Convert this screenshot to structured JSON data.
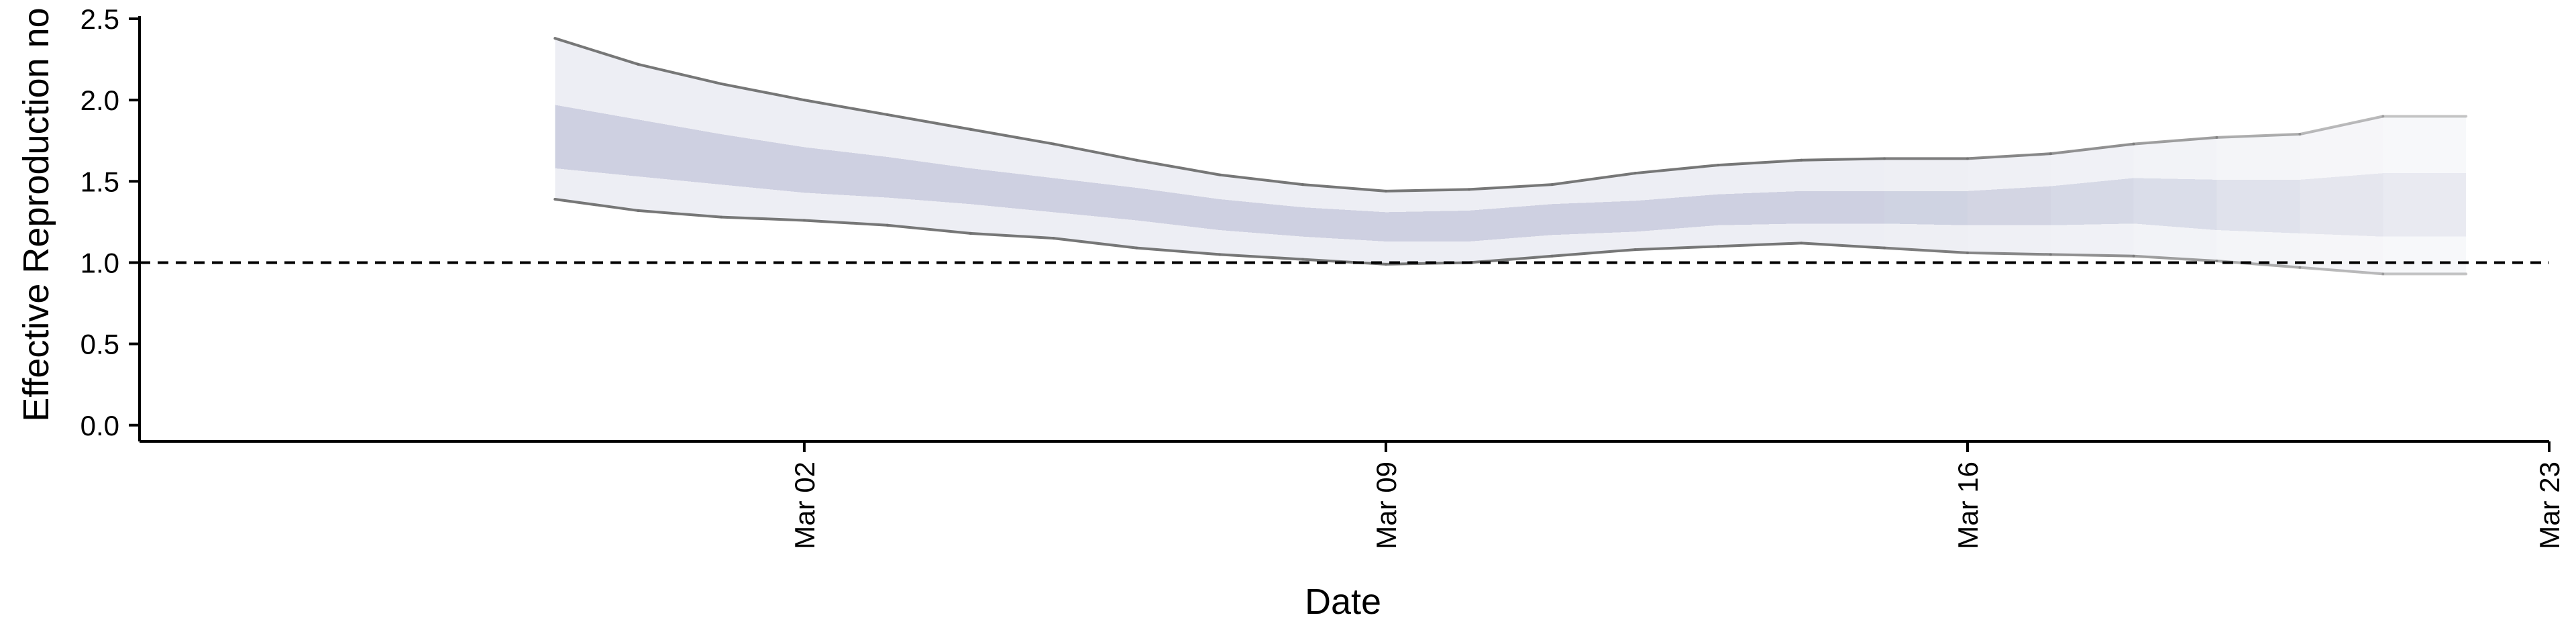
{
  "chart_data": {
    "type": "area",
    "title": "",
    "xlabel": "Date",
    "ylabel": "Effective Reproduction no",
    "x_axis": {
      "range": [
        "2020-02-23",
        "2020-03-23"
      ],
      "ticks": [
        "2020-03-02",
        "2020-03-09",
        "2020-03-16",
        "2020-03-23"
      ],
      "tick_labels": [
        "Mar 02",
        "Mar 09",
        "Mar 16",
        "Mar 23"
      ]
    },
    "y_axis": {
      "range": [
        -0.1,
        2.5
      ],
      "ticks": [
        0.0,
        0.5,
        1.0,
        1.5,
        2.0,
        2.5
      ],
      "tick_labels": [
        "0.0",
        "0.5",
        "1.0",
        "1.5",
        "2.0",
        "2.5"
      ]
    },
    "reference_line": {
      "y": 1.0,
      "style": "dashed"
    },
    "grid": false,
    "legend": "none",
    "colors": {
      "band": "#7c86b0",
      "bound_line": "#707070",
      "reference": "#000000"
    },
    "dates": [
      "2020-02-28",
      "2020-02-29",
      "2020-03-01",
      "2020-03-02",
      "2020-03-03",
      "2020-03-04",
      "2020-03-05",
      "2020-03-06",
      "2020-03-07",
      "2020-03-08",
      "2020-03-09",
      "2020-03-10",
      "2020-03-11",
      "2020-03-12",
      "2020-03-13",
      "2020-03-14",
      "2020-03-15",
      "2020-03-16",
      "2020-03-17",
      "2020-03-18",
      "2020-03-19",
      "2020-03-20",
      "2020-03-21",
      "2020-03-22"
    ],
    "outer_upper": [
      2.38,
      2.22,
      2.1,
      2.0,
      1.91,
      1.82,
      1.73,
      1.63,
      1.54,
      1.48,
      1.44,
      1.45,
      1.48,
      1.55,
      1.6,
      1.63,
      1.64,
      1.64,
      1.67,
      1.73,
      1.77,
      1.79,
      1.9,
      1.9
    ],
    "inner_upper": [
      1.97,
      1.88,
      1.79,
      1.71,
      1.65,
      1.58,
      1.52,
      1.46,
      1.39,
      1.34,
      1.31,
      1.32,
      1.36,
      1.38,
      1.42,
      1.44,
      1.44,
      1.44,
      1.47,
      1.52,
      1.51,
      1.51,
      1.55,
      1.55
    ],
    "inner_lower": [
      1.58,
      1.53,
      1.48,
      1.43,
      1.4,
      1.36,
      1.31,
      1.26,
      1.2,
      1.16,
      1.13,
      1.13,
      1.17,
      1.19,
      1.23,
      1.24,
      1.24,
      1.23,
      1.23,
      1.24,
      1.2,
      1.18,
      1.16,
      1.16
    ],
    "outer_lower": [
      1.39,
      1.32,
      1.28,
      1.26,
      1.23,
      1.18,
      1.15,
      1.09,
      1.05,
      1.02,
      0.99,
      1.0,
      1.04,
      1.08,
      1.1,
      1.12,
      1.09,
      1.06,
      1.05,
      1.04,
      1.01,
      0.97,
      0.93,
      0.93
    ],
    "opacity": [
      1,
      1,
      1,
      1,
      1,
      1,
      1,
      1,
      1,
      1,
      1,
      1,
      1,
      1,
      1,
      1,
      0.95,
      0.88,
      0.8,
      0.7,
      0.6,
      0.5,
      0.42,
      0.42
    ]
  }
}
